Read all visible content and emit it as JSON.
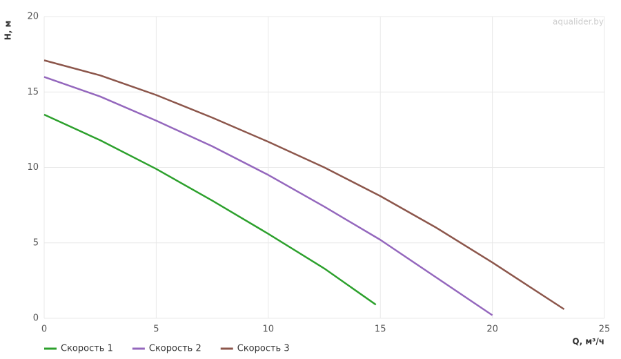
{
  "chart_data": {
    "type": "line",
    "x_label": "Q, м³/ч",
    "y_label": "H, м",
    "watermark": "aqualider.by",
    "xlim": [
      0,
      25
    ],
    "xticks": [
      0,
      5,
      10,
      15,
      20,
      25
    ],
    "ylim": [
      0,
      20
    ],
    "yticks": [
      0,
      5,
      10,
      15,
      20
    ],
    "grid": true,
    "legend": "bottom-left",
    "series": [
      {
        "name": "Скорость 1",
        "color": "#2ca02c",
        "x": [
          0,
          2.5,
          5,
          7.5,
          10,
          12.5,
          14.8
        ],
        "values": [
          13.5,
          11.8,
          9.9,
          7.8,
          5.6,
          3.3,
          0.9
        ]
      },
      {
        "name": "Скорость 2",
        "color": "#9467bd",
        "x": [
          0,
          2.5,
          5,
          7.5,
          10,
          12.5,
          15,
          17.5,
          20
        ],
        "values": [
          16,
          14.7,
          13.1,
          11.4,
          9.5,
          7.4,
          5.2,
          2.7,
          0.2
        ]
      },
      {
        "name": "Скорость 3",
        "color": "#8c564b",
        "x": [
          0,
          2.5,
          5,
          7.5,
          10,
          12.5,
          15,
          17.5,
          20,
          23.2
        ],
        "values": [
          17.1,
          16.1,
          14.8,
          13.3,
          11.7,
          10.0,
          8.1,
          6.0,
          3.7,
          0.6
        ]
      }
    ]
  }
}
